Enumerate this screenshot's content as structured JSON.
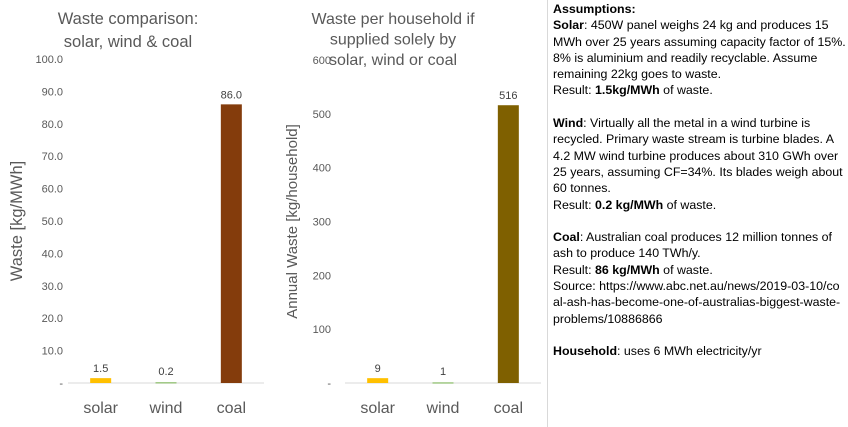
{
  "chart_data": [
    {
      "type": "bar",
      "title": "Waste comparison: solar, wind & coal",
      "title_lines": [
        "Waste comparison:",
        "solar, wind & coal"
      ],
      "ylabel": "Waste [kg/MWh]",
      "xlabel": "",
      "categories": [
        "solar",
        "wind",
        "coal"
      ],
      "values": [
        1.5,
        0.2,
        86.0
      ],
      "data_labels": [
        "1.5",
        "0.2",
        "86.0"
      ],
      "ylim": [
        0,
        100
      ],
      "yticks": [
        0,
        10,
        20,
        30,
        40,
        50,
        60,
        70,
        80,
        90,
        100
      ],
      "ytick_labels": [
        "-",
        "10.0",
        "20.0",
        "30.0",
        "40.0",
        "50.0",
        "60.0",
        "70.0",
        "80.0",
        "90.0",
        "100.0"
      ],
      "colors": [
        "#ffc000",
        "#70ad47",
        "#843c0c"
      ],
      "grid": false
    },
    {
      "type": "bar",
      "title": "Waste per household if supplied solely by solar, wind or coal",
      "title_lines": [
        "Waste per household if",
        "supplied solely by",
        "solar, wind or coal"
      ],
      "ylabel": "Annual Waste [kg/household]",
      "xlabel": "",
      "categories": [
        "solar",
        "wind",
        "coal"
      ],
      "values": [
        9,
        1,
        516
      ],
      "data_labels": [
        "9",
        "1",
        "516"
      ],
      "ylim": [
        0,
        600
      ],
      "yticks": [
        0,
        100,
        200,
        300,
        400,
        500,
        600
      ],
      "ytick_labels": [
        "-",
        "100",
        "200",
        "300",
        "400",
        "500",
        "600"
      ],
      "colors": [
        "#ffc000",
        "#70ad47",
        "#7f6000"
      ],
      "grid": false
    }
  ],
  "notes": {
    "heading": "Assumptions:",
    "solar_label": "Solar",
    "solar_text": ": 450W panel weighs 24 kg and produces 15 MWh over 25 years assuming capacity factor of 15%.  8% is aluminium and readily recyclable.  Assume remaining 22kg goes to waste.",
    "solar_result_prefix": "Result: ",
    "solar_result_value": "1.5kg/MWh",
    "solar_result_suffix": " of waste.",
    "wind_label": "Wind",
    "wind_text": ":  Virtually all the metal in a wind turbine is recycled.  Primary waste stream is turbine blades.  A 4.2 MW wind turbine produces about 310 GWh over 25 years, assuming CF=34%. Its blades weigh about 60 tonnes.",
    "wind_result_prefix": "Result: ",
    "wind_result_value": "0.2 kg/MWh",
    "wind_result_suffix": " of waste.",
    "coal_label": "Coal",
    "coal_text": ":  Australian coal produces 12 million tonnes of ash to produce 140 TWh/y.",
    "coal_result_prefix": "Result: ",
    "coal_result_value": "86 kg/MWh",
    "coal_result_suffix": " of waste.",
    "source_text": "Source: https://www.abc.net.au/news/2019-03-10/coal-ash-has-become-one-of-australias-biggest-waste-problems/10886866",
    "household_label": "Household",
    "household_text": ": uses 6 MWh electricity/yr"
  }
}
